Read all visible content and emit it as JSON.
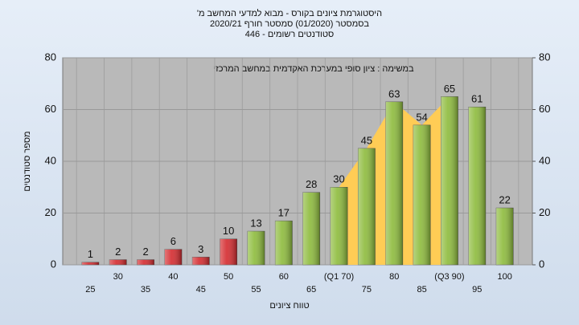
{
  "chart_data": {
    "type": "bar",
    "title": [
      "היסטוגרמת ציונים בקורס - מבוא למדעי המחשב מ'",
      "בסמסטר (01/2020) סמסטר חורף 2020/21",
      "סטודנטים רשומים - 446"
    ],
    "annotation": "במשימה : ציון סופי במערכת האקדמית במחשב המרכזי",
    "ylabel": "מספר סטודנטים",
    "xlabel": "טווח ציונים",
    "categories": [
      "25",
      "30",
      "35",
      "40",
      "45",
      "50",
      "55",
      "60",
      "65",
      "(Q1 70)",
      "75",
      "80",
      "85",
      "(Q3 90)",
      "95",
      "100"
    ],
    "values": [
      1,
      2,
      2,
      6,
      3,
      10,
      13,
      17,
      28,
      30,
      45,
      63,
      54,
      65,
      61,
      22
    ],
    "colors": [
      "#d42a2e",
      "#d42a2e",
      "#d42a2e",
      "#d42a2e",
      "#d42a2e",
      "#d42a2e",
      "#8dbb3c",
      "#8dbb3c",
      "#8dbb3c",
      "#8dbb3c",
      "#8dbb3c",
      "#8dbb3c",
      "#8dbb3c",
      "#8dbb3c",
      "#8dbb3c",
      "#8dbb3c"
    ],
    "highlight_color": "#ffcc55",
    "ylim": [
      0,
      80
    ],
    "yticks": [
      0,
      20,
      40,
      60,
      80
    ],
    "y2lim": [
      0,
      80
    ],
    "y2ticks": [
      0,
      20,
      40,
      60,
      80
    ],
    "grid": true
  }
}
